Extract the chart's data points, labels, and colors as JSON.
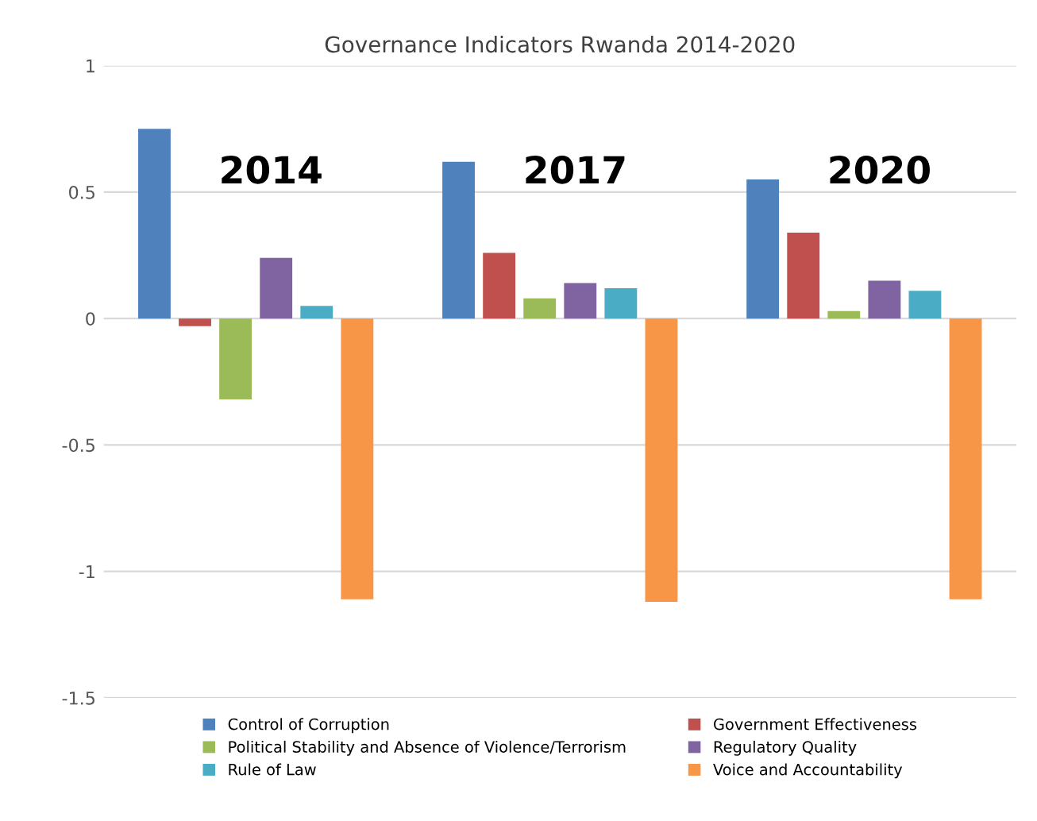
{
  "chart_data": {
    "type": "bar",
    "title": "Governance Indicators Rwanda 2014-2020",
    "categories": [
      null,
      null,
      null
    ],
    "annotations": [
      "2014",
      "2017",
      "2020"
    ],
    "series": [
      {
        "name": "Control of Corruption",
        "color": "#4f81bd",
        "values": [
          0.75,
          0.62,
          0.55
        ]
      },
      {
        "name": "Government Effectiveness",
        "color": "#c0504d",
        "values": [
          -0.03,
          0.26,
          0.34
        ]
      },
      {
        "name": "Political Stability and Absence of Violence/Terrorism",
        "color": "#9bbb59",
        "values": [
          -0.32,
          0.08,
          0.03
        ]
      },
      {
        "name": "Regulatory Quality",
        "color": "#8064a2",
        "values": [
          0.24,
          0.14,
          0.15
        ]
      },
      {
        "name": "Rule of Law",
        "color": "#4bacc6",
        "values": [
          0.05,
          0.12,
          0.11
        ]
      },
      {
        "name": "Voice and Accountability",
        "color": "#f79646",
        "values": [
          -1.11,
          -1.12,
          -1.11
        ]
      }
    ],
    "ylim": [
      -1.5,
      1
    ],
    "yticks": [
      -1.5,
      -1,
      -0.5,
      0,
      0.5,
      1
    ],
    "grid": "y",
    "legend": "bottom"
  }
}
